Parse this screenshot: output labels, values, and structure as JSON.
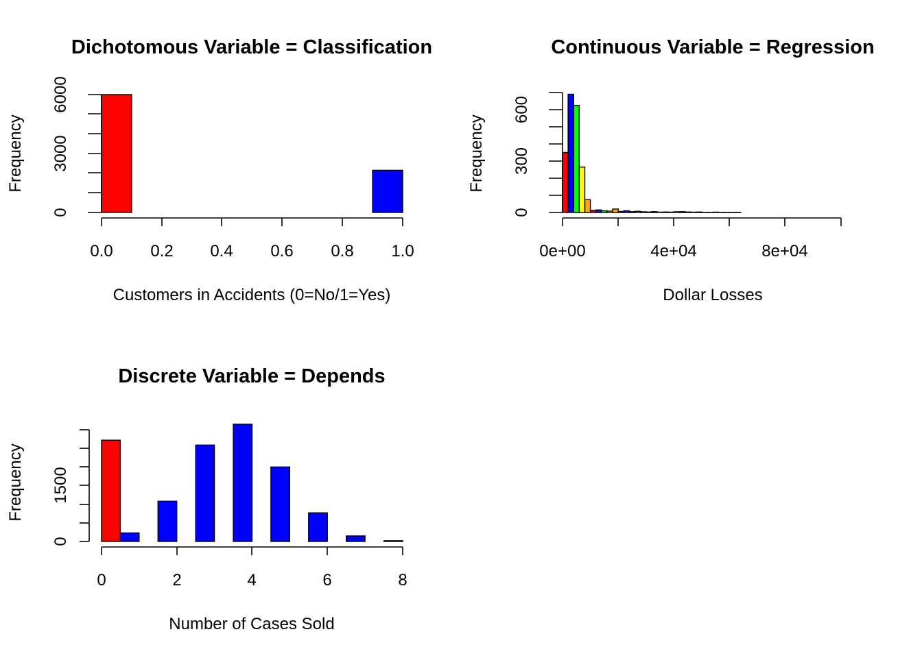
{
  "chart_data": [
    {
      "type": "bar",
      "title": "Dichotomous Variable = Classification",
      "xlabel": "Customers in Accidents (0=No/1=Yes)",
      "ylabel": "Frequency",
      "xlim": [
        0,
        1
      ],
      "ylim": [
        0,
        6000
      ],
      "x_ticks": [
        "0.0",
        "0.2",
        "0.4",
        "0.6",
        "0.8",
        "1.0"
      ],
      "y_ticks": [
        "0",
        "3000",
        "6000"
      ],
      "bars": [
        {
          "x0": 0.0,
          "x1": 0.1,
          "value": 6000,
          "color": "#ff0000"
        },
        {
          "x0": 0.9,
          "x1": 1.0,
          "value": 2150,
          "color": "#0000ff"
        }
      ]
    },
    {
      "type": "bar",
      "title": "Continuous Variable = Regression",
      "xlabel": "Dollar Losses",
      "ylabel": "Frequency",
      "xlim": [
        0,
        100000
      ],
      "ylim": [
        0,
        700
      ],
      "x_ticks": [
        "0e+00",
        "4e+04",
        "8e+04"
      ],
      "y_ticks": [
        "0",
        "300",
        "600"
      ],
      "bars": [
        {
          "x0": 0,
          "x1": 2000,
          "value": 350,
          "color": "#ff0000"
        },
        {
          "x0": 2000,
          "x1": 4000,
          "value": 690,
          "color": "#0000ff"
        },
        {
          "x0": 4000,
          "x1": 6000,
          "value": 625,
          "color": "#00ff00"
        },
        {
          "x0": 6000,
          "x1": 8000,
          "value": 265,
          "color": "#ffff00"
        },
        {
          "x0": 8000,
          "x1": 10000,
          "value": 75,
          "color": "#ffa500"
        },
        {
          "x0": 10000,
          "x1": 12000,
          "value": 12,
          "color": "#ff0000"
        },
        {
          "x0": 12000,
          "x1": 14000,
          "value": 15,
          "color": "#0000ff"
        },
        {
          "x0": 14000,
          "x1": 16000,
          "value": 10,
          "color": "#00ff00"
        },
        {
          "x0": 16000,
          "x1": 18000,
          "value": 8,
          "color": "#ffff00"
        },
        {
          "x0": 18000,
          "x1": 20000,
          "value": 20,
          "color": "#ffa500"
        },
        {
          "x0": 20000,
          "x1": 22000,
          "value": 6,
          "color": "#ff0000"
        },
        {
          "x0": 22000,
          "x1": 24000,
          "value": 10,
          "color": "#0000ff"
        },
        {
          "x0": 24000,
          "x1": 26000,
          "value": 5,
          "color": "#00ff00"
        },
        {
          "x0": 26000,
          "x1": 28000,
          "value": 7,
          "color": "#ffff00"
        },
        {
          "x0": 28000,
          "x1": 30000,
          "value": 4,
          "color": "#ffa500"
        },
        {
          "x0": 30000,
          "x1": 32000,
          "value": 3,
          "color": "#ff0000"
        },
        {
          "x0": 32000,
          "x1": 34000,
          "value": 5,
          "color": "#0000ff"
        },
        {
          "x0": 34000,
          "x1": 36000,
          "value": 2,
          "color": "#00ff00"
        },
        {
          "x0": 36000,
          "x1": 38000,
          "value": 3,
          "color": "#ffff00"
        },
        {
          "x0": 38000,
          "x1": 40000,
          "value": 2,
          "color": "#ffa500"
        },
        {
          "x0": 40000,
          "x1": 42000,
          "value": 4,
          "color": "#ff0000"
        },
        {
          "x0": 42000,
          "x1": 44000,
          "value": 5,
          "color": "#0000ff"
        },
        {
          "x0": 44000,
          "x1": 46000,
          "value": 3,
          "color": "#00ff00"
        },
        {
          "x0": 46000,
          "x1": 48000,
          "value": 2,
          "color": "#ffff00"
        },
        {
          "x0": 48000,
          "x1": 50000,
          "value": 3,
          "color": "#ffa500"
        },
        {
          "x0": 50000,
          "x1": 52000,
          "value": 1,
          "color": "#ff0000"
        },
        {
          "x0": 52000,
          "x1": 54000,
          "value": 1,
          "color": "#0000ff"
        },
        {
          "x0": 54000,
          "x1": 56000,
          "value": 2,
          "color": "#00ff00"
        },
        {
          "x0": 56000,
          "x1": 58000,
          "value": 1,
          "color": "#ffff00"
        },
        {
          "x0": 58000,
          "x1": 60000,
          "value": 1,
          "color": "#ffa500"
        },
        {
          "x0": 60000,
          "x1": 62000,
          "value": 1,
          "color": "#ff0000"
        },
        {
          "x0": 62000,
          "x1": 64000,
          "value": 1,
          "color": "#0000ff"
        }
      ]
    },
    {
      "type": "bar",
      "title": "Discrete Variable = Depends",
      "xlabel": "Number of Cases Sold",
      "ylabel": "Frequency",
      "xlim": [
        0,
        8
      ],
      "ylim": [
        0,
        3000
      ],
      "x_ticks": [
        "0",
        "2",
        "4",
        "6",
        "8"
      ],
      "y_ticks": [
        "0",
        "1500"
      ],
      "bars": [
        {
          "x0": 0.0,
          "x1": 0.5,
          "value": 2720,
          "color": "#ff0000"
        },
        {
          "x0": 0.5,
          "x1": 1.0,
          "value": 230,
          "color": "#0000ff"
        },
        {
          "x0": 1.5,
          "x1": 2.0,
          "value": 1080,
          "color": "#0000ff"
        },
        {
          "x0": 2.5,
          "x1": 3.0,
          "value": 2590,
          "color": "#0000ff"
        },
        {
          "x0": 3.5,
          "x1": 4.0,
          "value": 3150,
          "color": "#0000ff"
        },
        {
          "x0": 4.5,
          "x1": 5.0,
          "value": 2000,
          "color": "#0000ff"
        },
        {
          "x0": 5.5,
          "x1": 6.0,
          "value": 770,
          "color": "#0000ff"
        },
        {
          "x0": 6.5,
          "x1": 7.0,
          "value": 150,
          "color": "#0000ff"
        },
        {
          "x0": 7.5,
          "x1": 8.0,
          "value": 20,
          "color": "#0000ff"
        }
      ]
    }
  ]
}
